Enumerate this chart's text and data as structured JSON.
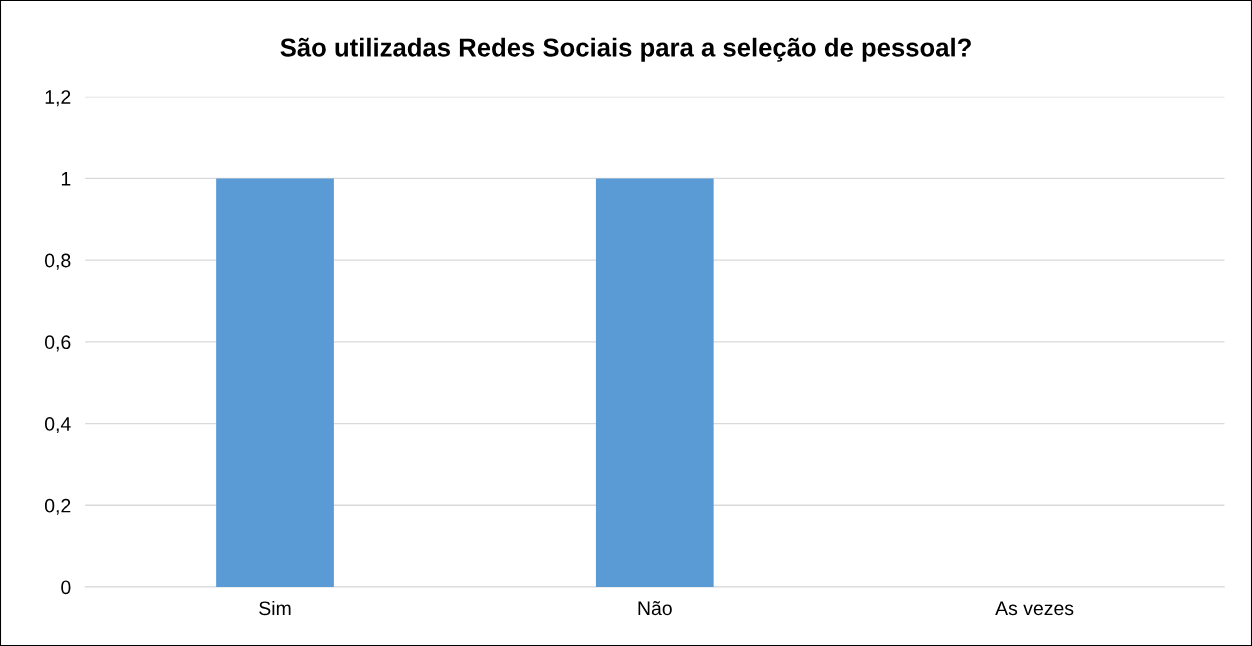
{
  "chart_data": {
    "type": "bar",
    "title": "São utilizadas Redes Sociais para a seleção de pessoal?",
    "categories": [
      "Sim",
      "Não",
      "As vezes"
    ],
    "values": [
      1,
      1,
      0
    ],
    "color": "#5b9bd5",
    "ylim": [
      0,
      1.2
    ],
    "yticks": [
      0,
      {
        "value": 0.2,
        "label": "0,2"
      },
      {
        "value": 0.4,
        "label": "0,4"
      },
      {
        "value": 0.6,
        "label": "0,6"
      },
      {
        "value": 0.8,
        "label": "0,8"
      },
      1,
      {
        "value": 1.2,
        "label": "1,2"
      }
    ],
    "grid": "y",
    "legend": false
  }
}
